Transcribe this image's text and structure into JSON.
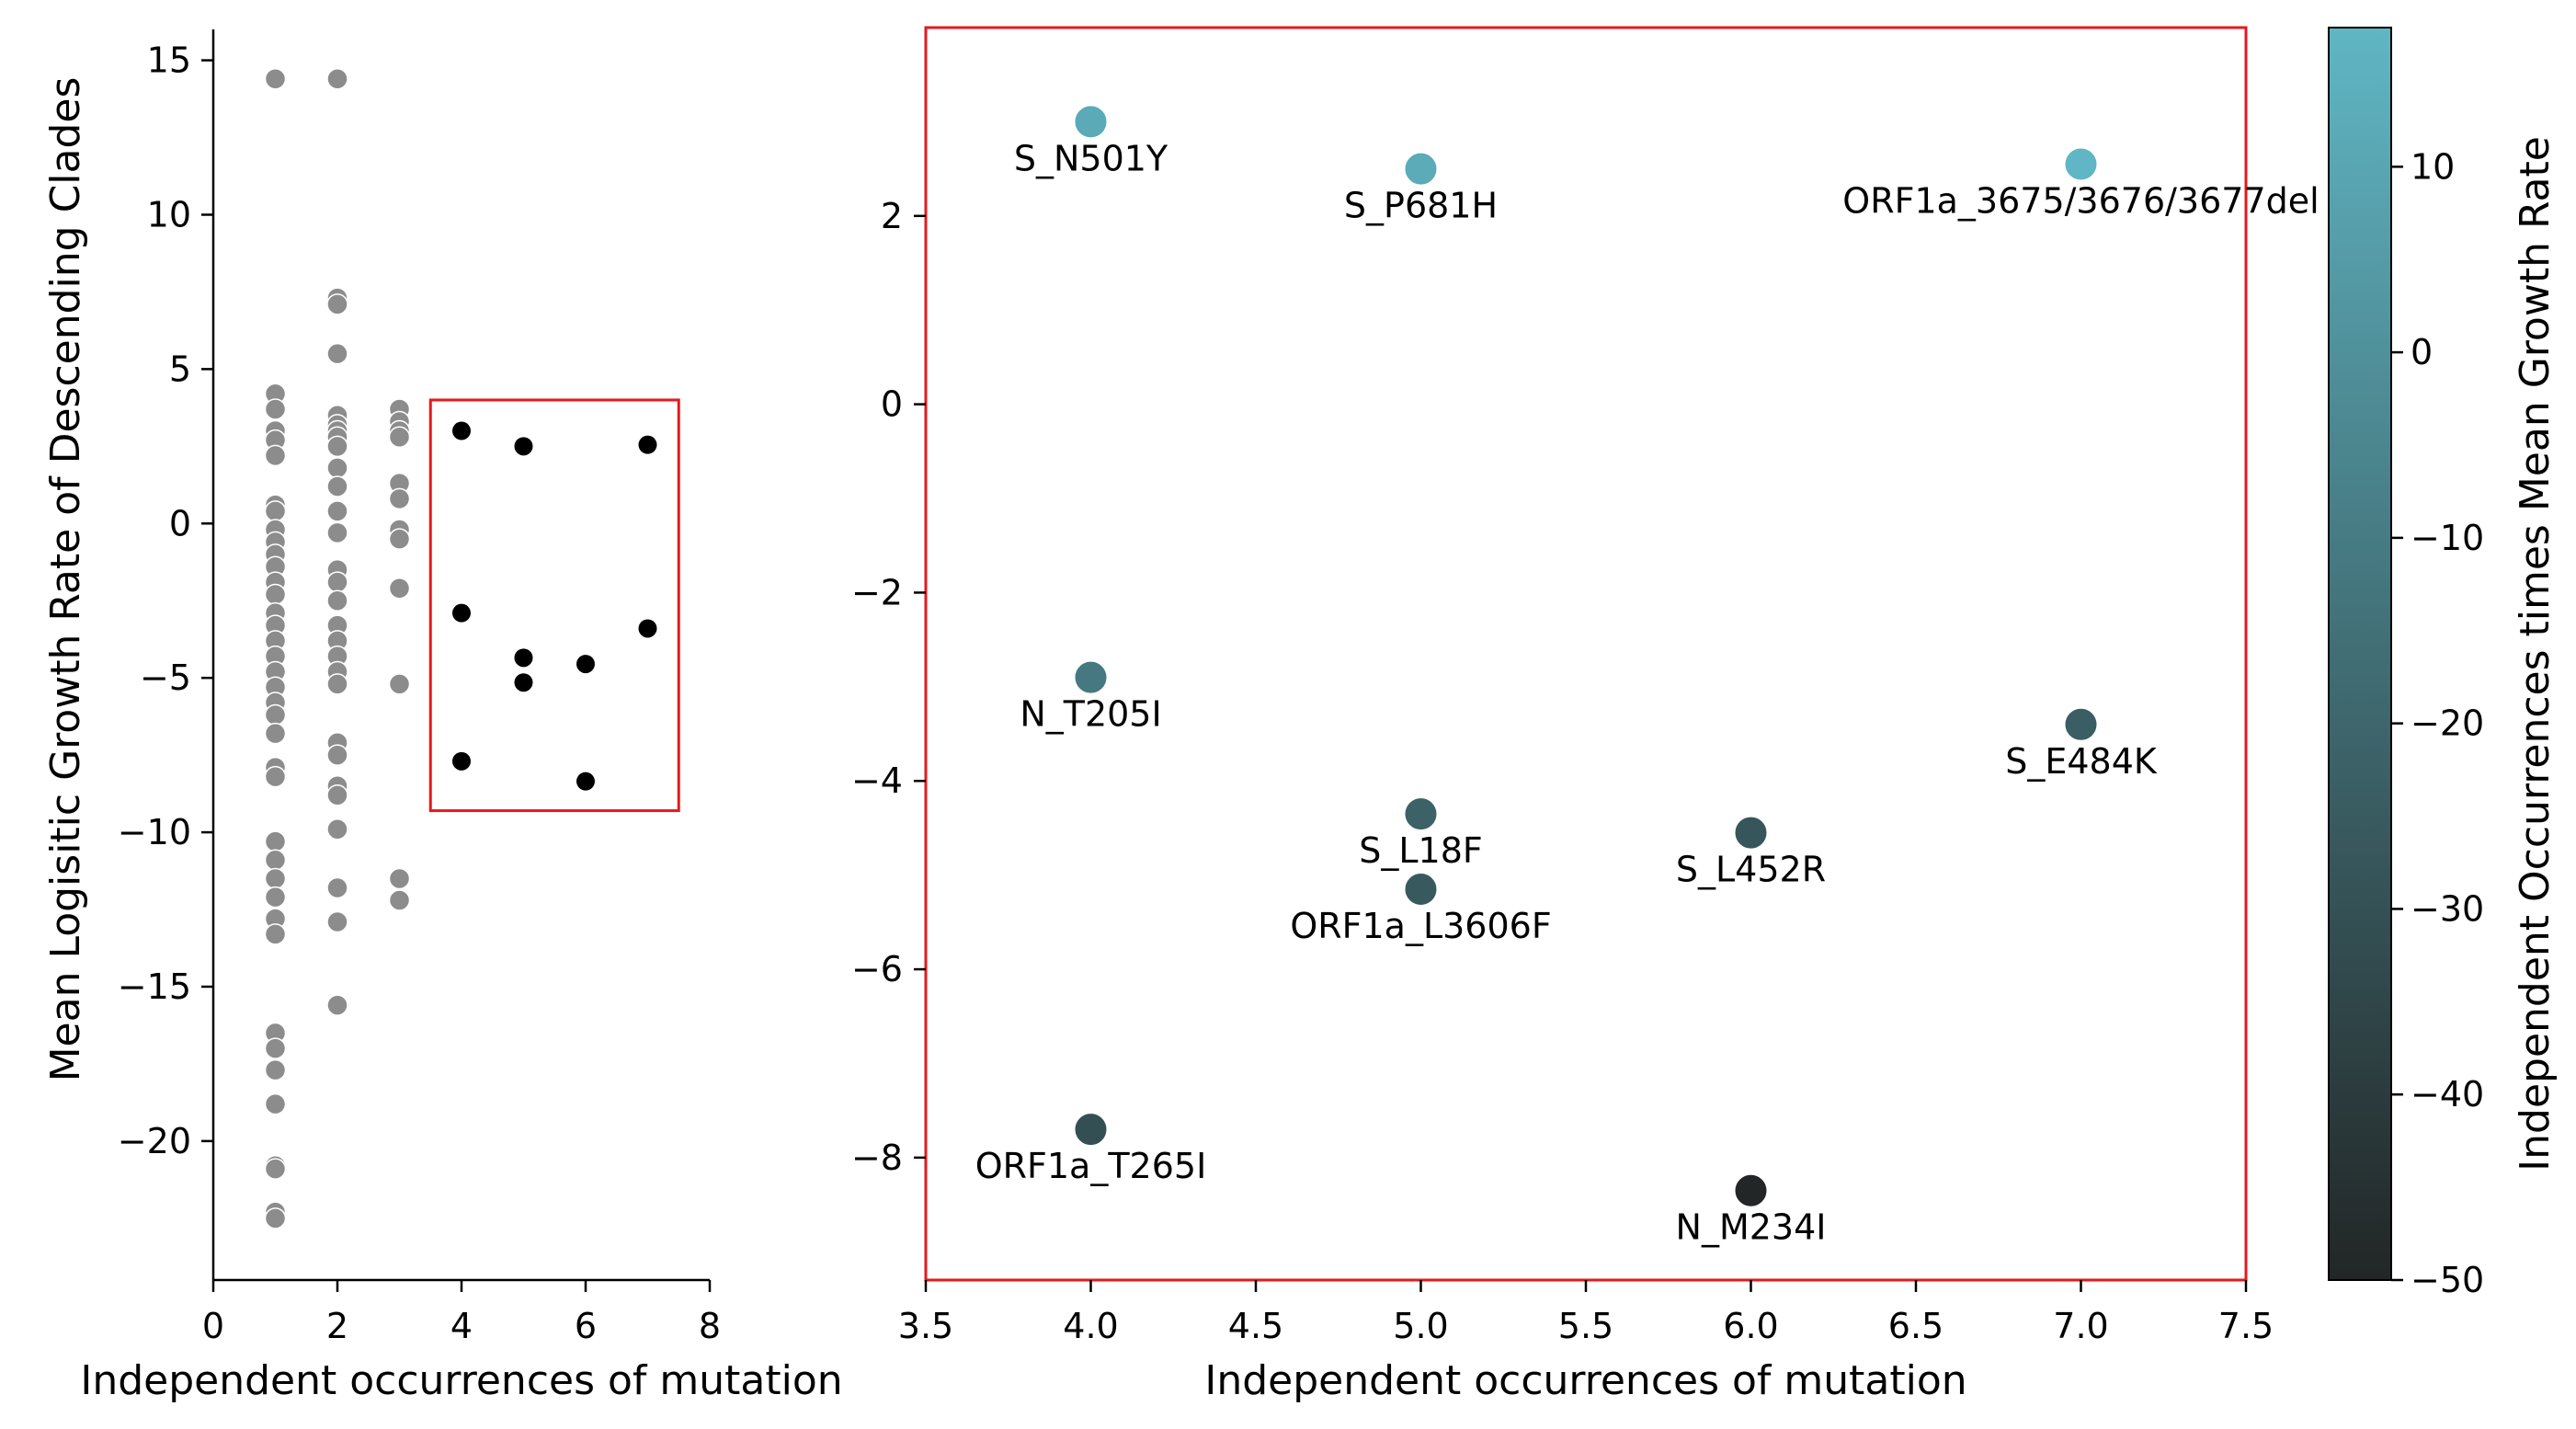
{
  "chart_data": [
    {
      "type": "scatter",
      "xlabel": "Independent occurrences of mutation",
      "ylabel": "Mean Logisitic Growth Rate of Descending Clades",
      "xlim": [
        0,
        8
      ],
      "ylim": [
        -24.5,
        16
      ],
      "xticks": [
        "0",
        "2",
        "4",
        "6",
        "8"
      ],
      "yticks": [
        "15",
        "10",
        "5",
        "0",
        "−5",
        "−10",
        "−15",
        "−20"
      ],
      "grid": false,
      "series": [
        {
          "color": "#8c8c8c",
          "points": [
            [
              1,
              14.4
            ],
            [
              1,
              4.2
            ],
            [
              1,
              3.7
            ],
            [
              1,
              3.0
            ],
            [
              1,
              2.7
            ],
            [
              1,
              2.2
            ],
            [
              1,
              0.6
            ],
            [
              1,
              0.4
            ],
            [
              1,
              -0.2
            ],
            [
              1,
              -0.6
            ],
            [
              1,
              -1.0
            ],
            [
              1,
              -1.4
            ],
            [
              1,
              -1.9
            ],
            [
              1,
              -2.3
            ],
            [
              1,
              -2.9
            ],
            [
              1,
              -3.3
            ],
            [
              1,
              -3.8
            ],
            [
              1,
              -4.3
            ],
            [
              1,
              -4.8
            ],
            [
              1,
              -5.3
            ],
            [
              1,
              -5.8
            ],
            [
              1,
              -6.2
            ],
            [
              1,
              -6.8
            ],
            [
              1,
              -7.9
            ],
            [
              1,
              -8.2
            ],
            [
              1,
              -10.3
            ],
            [
              1,
              -10.9
            ],
            [
              1,
              -11.5
            ],
            [
              1,
              -12.1
            ],
            [
              1,
              -12.8
            ],
            [
              1,
              -13.3
            ],
            [
              1,
              -16.5
            ],
            [
              1,
              -17.0
            ],
            [
              1,
              -17.7
            ],
            [
              1,
              -18.8
            ],
            [
              1,
              -20.8
            ],
            [
              1,
              -20.9
            ],
            [
              1,
              -22.3
            ],
            [
              1,
              -22.5
            ],
            [
              2,
              14.4
            ],
            [
              2,
              7.3
            ],
            [
              2,
              7.1
            ],
            [
              2,
              5.5
            ],
            [
              2,
              3.5
            ],
            [
              2,
              3.2
            ],
            [
              2,
              3.0
            ],
            [
              2,
              2.8
            ],
            [
              2,
              2.5
            ],
            [
              2,
              1.8
            ],
            [
              2,
              1.2
            ],
            [
              2,
              0.4
            ],
            [
              2,
              -0.3
            ],
            [
              2,
              -1.5
            ],
            [
              2,
              -1.9
            ],
            [
              2,
              -2.5
            ],
            [
              2,
              -3.3
            ],
            [
              2,
              -3.8
            ],
            [
              2,
              -4.3
            ],
            [
              2,
              -4.8
            ],
            [
              2,
              -5.2
            ],
            [
              2,
              -7.1
            ],
            [
              2,
              -7.5
            ],
            [
              2,
              -8.5
            ],
            [
              2,
              -8.8
            ],
            [
              2,
              -9.9
            ],
            [
              2,
              -11.8
            ],
            [
              2,
              -12.9
            ],
            [
              2,
              -15.6
            ],
            [
              3,
              3.7
            ],
            [
              3,
              3.3
            ],
            [
              3,
              3.0
            ],
            [
              3,
              2.8
            ],
            [
              3,
              1.3
            ],
            [
              3,
              0.8
            ],
            [
              3,
              -0.2
            ],
            [
              3,
              -0.5
            ],
            [
              3,
              -2.1
            ],
            [
              3,
              -5.2
            ],
            [
              3,
              -11.5
            ],
            [
              3,
              -12.2
            ]
          ]
        },
        {
          "color": "#000000",
          "points": [
            [
              4,
              3.0
            ],
            [
              4,
              -2.9
            ],
            [
              4,
              -7.7
            ],
            [
              5,
              2.5
            ],
            [
              5,
              -4.35
            ],
            [
              5,
              -5.15
            ],
            [
              6,
              -4.55
            ],
            [
              6,
              -8.35
            ],
            [
              7,
              2.55
            ],
            [
              7,
              -3.4
            ]
          ]
        }
      ],
      "highlight_box": {
        "xlim": [
          3.5,
          7.5
        ],
        "ylim": [
          -9.3,
          4.0
        ],
        "color": "#e41a1c"
      }
    },
    {
      "type": "scatter",
      "xlabel": "Independent occurrences of mutation",
      "ylabel": "",
      "xlim": [
        3.5,
        7.5
      ],
      "ylim": [
        -9.3,
        4.0
      ],
      "xticks": [
        "3.5",
        "4.0",
        "4.5",
        "5.0",
        "5.5",
        "6.0",
        "6.5",
        "7.0",
        "7.5"
      ],
      "yticks": [
        "2",
        "0",
        "−2",
        "−4",
        "−6",
        "−8"
      ],
      "grid": false,
      "frame_color": "#e41a1c",
      "points": [
        {
          "x": 4,
          "y": 3.0,
          "label": "S_N501Y",
          "c": 12.0
        },
        {
          "x": 5,
          "y": 2.5,
          "label": "S_P681H",
          "c": 12.5
        },
        {
          "x": 7,
          "y": 2.55,
          "label": "ORF1a_3675/3676/3677del",
          "c": 17.9
        },
        {
          "x": 4,
          "y": -2.9,
          "label": "N_T205I",
          "c": -11.6
        },
        {
          "x": 7,
          "y": -3.4,
          "label": "S_E484K",
          "c": -23.8
        },
        {
          "x": 5,
          "y": -4.35,
          "label": "S_L18F",
          "c": -21.8
        },
        {
          "x": 6,
          "y": -4.55,
          "label": "S_L452R",
          "c": -27.3
        },
        {
          "x": 5,
          "y": -5.15,
          "label": "ORF1a_L3606F",
          "c": -25.8
        },
        {
          "x": 4,
          "y": -7.7,
          "label": "ORF1a_T265I",
          "c": -30.8
        },
        {
          "x": 6,
          "y": -8.35,
          "label": "N_M234I",
          "c": -50.1
        }
      ]
    },
    {
      "type": "colorbar",
      "label": "Independent Occurrences times Mean Growth Rate",
      "range": [
        -50,
        17.5
      ],
      "ticks": [
        "10",
        "0",
        "−10",
        "−20",
        "−30",
        "−40",
        "−50"
      ],
      "color_low": "#222626",
      "color_high": "#60b6c4"
    }
  ]
}
